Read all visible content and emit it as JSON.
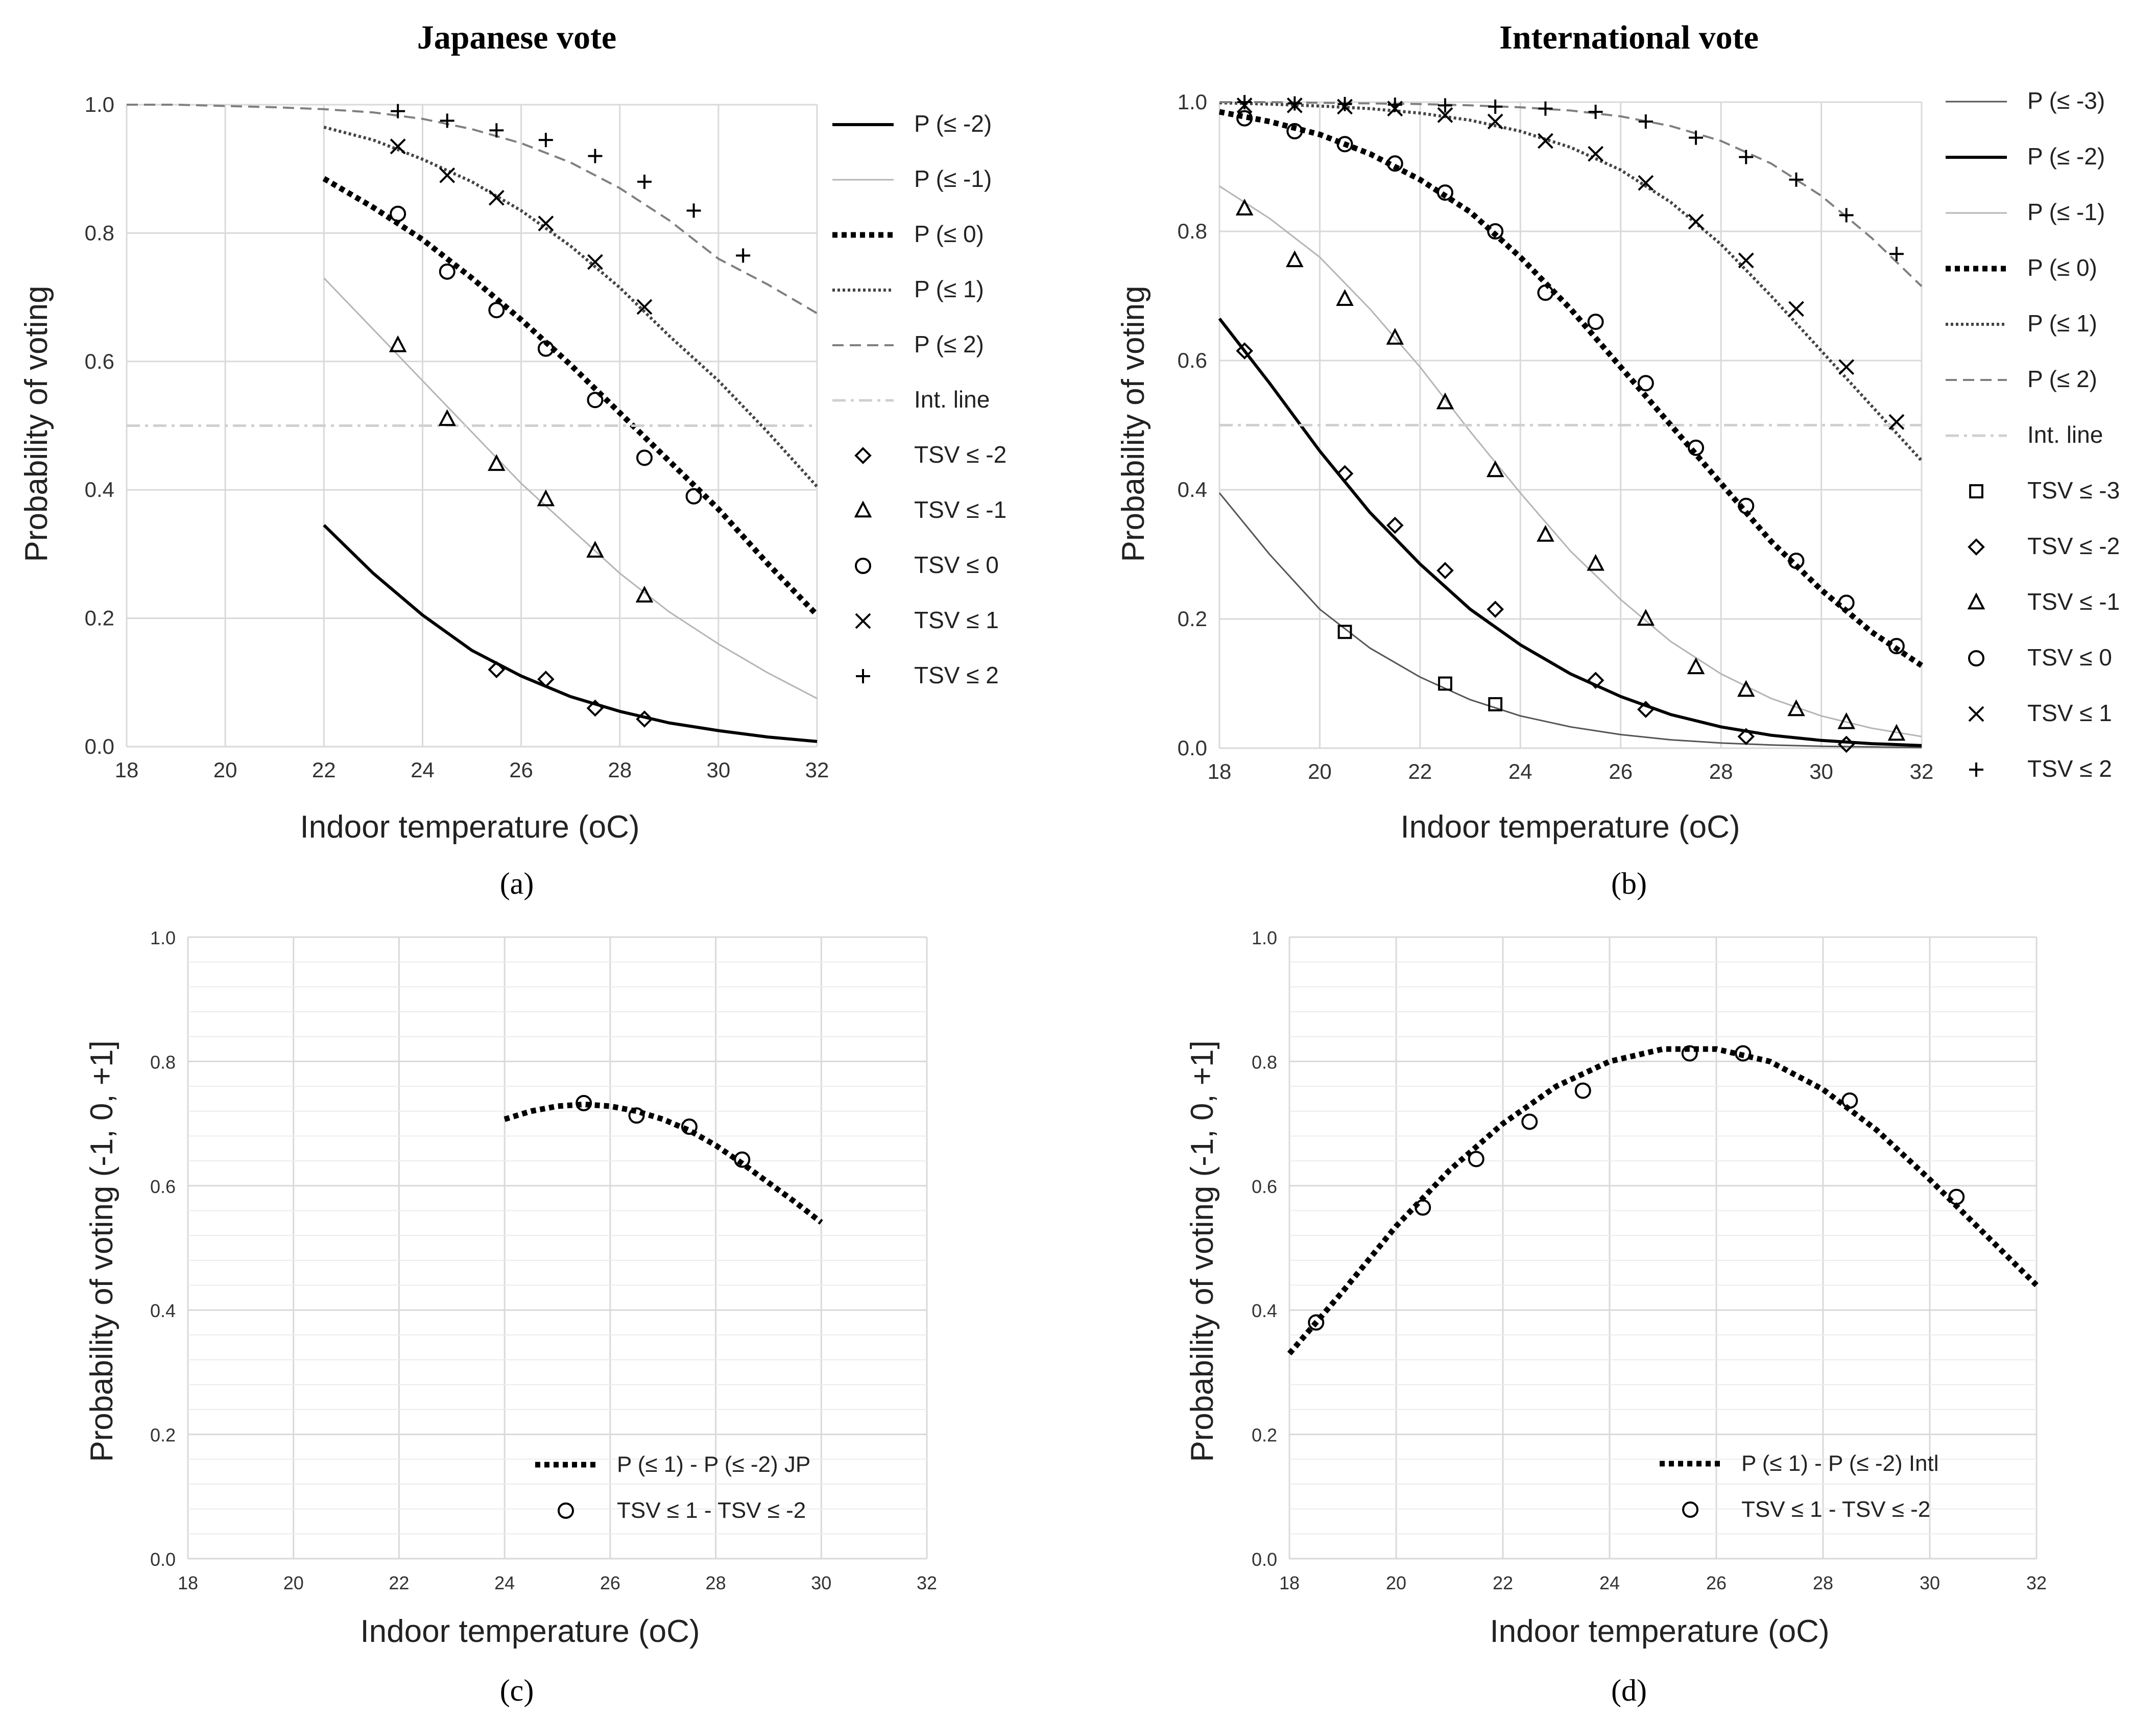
{
  "chart_data": [
    {
      "panel": "(a)",
      "type": "line",
      "title": "Japanese vote",
      "xlabel": "Indoor temperature (oC)",
      "ylabel": "Probability of voting",
      "xlim": [
        18,
        32
      ],
      "ylim": [
        0,
        1
      ],
      "x_ticks": [
        "18",
        "20",
        "22",
        "24",
        "26",
        "28",
        "30",
        "32"
      ],
      "y_ticks": [
        "0.0",
        "0.2",
        "0.4",
        "0.6",
        "0.8",
        "1.0"
      ],
      "grid": true,
      "legend_position": "right",
      "lines": [
        {
          "name": "P (≤ -2)",
          "style": "solid-thick",
          "color": "#000000",
          "x": [
            22,
            23,
            24,
            25,
            26,
            27,
            28,
            29,
            30,
            31,
            32
          ],
          "y": [
            0.345,
            0.27,
            0.205,
            0.15,
            0.11,
            0.078,
            0.055,
            0.037,
            0.025,
            0.015,
            0.008
          ]
        },
        {
          "name": "P (≤ -1)",
          "style": "solid-thin",
          "color": "#b5b5b5",
          "x": [
            22,
            23,
            24,
            25,
            26,
            27,
            28,
            29,
            30,
            31,
            32
          ],
          "y": [
            0.73,
            0.65,
            0.57,
            0.49,
            0.41,
            0.34,
            0.27,
            0.21,
            0.16,
            0.115,
            0.075
          ]
        },
        {
          "name": "P (≤ 0)",
          "style": "dotted-thick",
          "color": "#000000",
          "x": [
            22,
            23,
            24,
            25,
            26,
            27,
            28,
            29,
            30,
            31,
            32
          ],
          "y": [
            0.885,
            0.84,
            0.79,
            0.73,
            0.665,
            0.595,
            0.52,
            0.445,
            0.37,
            0.285,
            0.205
          ]
        },
        {
          "name": "P (≤ 1)",
          "style": "dotted-thin",
          "color": "#444444",
          "x": [
            22,
            23,
            24,
            25,
            26,
            27,
            28,
            29,
            30,
            31,
            32
          ],
          "y": [
            0.965,
            0.945,
            0.915,
            0.88,
            0.835,
            0.78,
            0.715,
            0.64,
            0.57,
            0.49,
            0.405
          ]
        },
        {
          "name": "P (≤ 2)",
          "style": "dashed",
          "color": "#7f7f7f",
          "x": [
            18,
            19,
            20,
            21,
            22,
            23,
            24,
            25,
            26,
            27,
            28,
            29,
            30,
            31,
            32
          ],
          "y": [
            1.0,
            1.0,
            0.998,
            0.996,
            0.993,
            0.988,
            0.978,
            0.962,
            0.94,
            0.91,
            0.87,
            0.82,
            0.76,
            0.72,
            0.675
          ]
        },
        {
          "name": "Int. line",
          "style": "dashdot",
          "color": "#d0d0d0",
          "x": [
            18,
            32
          ],
          "y": [
            0.5,
            0.5
          ]
        }
      ],
      "markers": [
        {
          "name": "TSV ≤ -2",
          "marker": "diamond",
          "x": [
            25.5,
            26.5,
            27.5,
            28.5
          ],
          "y": [
            0.12,
            0.105,
            0.06,
            0.043
          ]
        },
        {
          "name": "TSV ≤ -1",
          "marker": "triangle",
          "x": [
            23.5,
            24.5,
            25.5,
            26.5,
            27.5,
            28.5
          ],
          "y": [
            0.625,
            0.51,
            0.44,
            0.385,
            0.305,
            0.235
          ]
        },
        {
          "name": "TSV ≤ 0",
          "marker": "circle",
          "x": [
            23.5,
            24.5,
            25.5,
            26.5,
            27.5,
            28.5,
            29.5
          ],
          "y": [
            0.83,
            0.74,
            0.68,
            0.62,
            0.54,
            0.45,
            0.39
          ]
        },
        {
          "name": "TSV ≤ 1",
          "marker": "x",
          "x": [
            23.5,
            24.5,
            25.5,
            26.5,
            27.5,
            28.5
          ],
          "y": [
            0.935,
            0.89,
            0.855,
            0.815,
            0.755,
            0.685
          ]
        },
        {
          "name": "TSV ≤ 2",
          "marker": "plus",
          "x": [
            23.5,
            24.5,
            25.5,
            26.5,
            27.5,
            28.5,
            29.5,
            30.5
          ],
          "y": [
            0.99,
            0.975,
            0.96,
            0.945,
            0.92,
            0.88,
            0.835,
            0.765
          ]
        }
      ]
    },
    {
      "panel": "(b)",
      "type": "line",
      "title": "International vote",
      "xlabel": "Indoor temperature (oC)",
      "ylabel": "Probability of voting",
      "xlim": [
        18,
        32
      ],
      "ylim": [
        0,
        1
      ],
      "x_ticks": [
        "18",
        "20",
        "22",
        "24",
        "26",
        "28",
        "30",
        "32"
      ],
      "y_ticks": [
        "0.0",
        "0.2",
        "0.4",
        "0.6",
        "0.8",
        "1.0"
      ],
      "grid": true,
      "legend_position": "right",
      "lines": [
        {
          "name": "P (≤ -3)",
          "style": "solid-thin",
          "color": "#555555",
          "x": [
            18,
            19,
            20,
            21,
            22,
            23,
            24,
            25,
            26,
            27,
            28,
            29,
            30,
            31,
            32
          ],
          "y": [
            0.395,
            0.3,
            0.215,
            0.155,
            0.11,
            0.075,
            0.05,
            0.033,
            0.021,
            0.013,
            0.008,
            0.005,
            0.003,
            0.002,
            0.001
          ]
        },
        {
          "name": "P (≤ -2)",
          "style": "solid-thick",
          "color": "#000000",
          "x": [
            18,
            19,
            20,
            21,
            22,
            23,
            24,
            25,
            26,
            27,
            28,
            29,
            30,
            31,
            32
          ],
          "y": [
            0.665,
            0.565,
            0.46,
            0.365,
            0.285,
            0.215,
            0.16,
            0.115,
            0.08,
            0.052,
            0.033,
            0.02,
            0.012,
            0.007,
            0.004
          ]
        },
        {
          "name": "P (≤ -1)",
          "style": "solid-thin",
          "color": "#b5b5b5",
          "x": [
            18,
            19,
            20,
            21,
            22,
            23,
            24,
            25,
            26,
            27,
            28,
            29,
            30,
            31,
            32
          ],
          "y": [
            0.87,
            0.82,
            0.76,
            0.68,
            0.59,
            0.49,
            0.395,
            0.305,
            0.23,
            0.165,
            0.115,
            0.077,
            0.05,
            0.031,
            0.018
          ]
        },
        {
          "name": "P (≤ 0)",
          "style": "dotted-thick",
          "color": "#000000",
          "x": [
            18,
            19,
            20,
            21,
            22,
            23,
            24,
            25,
            26,
            27,
            28,
            29,
            30,
            31,
            32
          ],
          "y": [
            0.985,
            0.97,
            0.95,
            0.92,
            0.88,
            0.83,
            0.76,
            0.68,
            0.59,
            0.5,
            0.41,
            0.32,
            0.245,
            0.18,
            0.128
          ]
        },
        {
          "name": "P (≤ 1)",
          "style": "dotted-thin",
          "color": "#444444",
          "x": [
            18,
            19,
            20,
            21,
            22,
            23,
            24,
            25,
            26,
            27,
            28,
            29,
            30,
            31,
            32
          ],
          "y": [
            0.999,
            0.997,
            0.994,
            0.99,
            0.983,
            0.972,
            0.955,
            0.93,
            0.895,
            0.845,
            0.78,
            0.7,
            0.615,
            0.53,
            0.445
          ]
        },
        {
          "name": "P (≤ 2)",
          "style": "dashed",
          "color": "#7f7f7f",
          "x": [
            18,
            19,
            20,
            21,
            22,
            23,
            24,
            25,
            26,
            27,
            28,
            29,
            30,
            31,
            32
          ],
          "y": [
            1.0,
            1.0,
            0.999,
            0.998,
            0.997,
            0.995,
            0.992,
            0.987,
            0.978,
            0.963,
            0.94,
            0.905,
            0.855,
            0.79,
            0.715
          ]
        },
        {
          "name": "Int. line",
          "style": "dashdot",
          "color": "#d0d0d0",
          "x": [
            18,
            32
          ],
          "y": [
            0.5,
            0.5
          ]
        }
      ],
      "markers": [
        {
          "name": "TSV ≤ -3",
          "marker": "square",
          "x": [
            20.5,
            22.5,
            23.5
          ],
          "y": [
            0.18,
            0.1,
            0.068
          ]
        },
        {
          "name": "TSV ≤ -2",
          "marker": "diamond",
          "x": [
            18.5,
            20.5,
            21.5,
            22.5,
            23.5,
            25.5,
            26.5,
            28.5,
            30.5
          ],
          "y": [
            0.615,
            0.425,
            0.345,
            0.275,
            0.215,
            0.105,
            0.06,
            0.018,
            0.006
          ]
        },
        {
          "name": "TSV ≤ -1",
          "marker": "triangle",
          "x": [
            18.5,
            19.5,
            20.5,
            21.5,
            22.5,
            23.5,
            24.5,
            25.5,
            26.5,
            27.5,
            28.5,
            29.5,
            30.5,
            31.5
          ],
          "y": [
            0.835,
            0.755,
            0.695,
            0.635,
            0.535,
            0.43,
            0.33,
            0.285,
            0.2,
            0.125,
            0.09,
            0.06,
            0.04,
            0.022
          ]
        },
        {
          "name": "TSV ≤ 0",
          "marker": "circle",
          "x": [
            18.5,
            19.5,
            20.5,
            21.5,
            22.5,
            23.5,
            24.5,
            25.5,
            26.5,
            27.5,
            28.5,
            29.5,
            30.5,
            31.5
          ],
          "y": [
            0.975,
            0.955,
            0.935,
            0.905,
            0.86,
            0.8,
            0.705,
            0.66,
            0.565,
            0.465,
            0.375,
            0.29,
            0.225,
            0.158
          ]
        },
        {
          "name": "TSV ≤ 1",
          "marker": "x",
          "x": [
            18.5,
            19.5,
            20.5,
            21.5,
            22.5,
            23.5,
            24.5,
            25.5,
            26.5,
            27.5,
            28.5,
            29.5,
            30.5,
            31.5
          ],
          "y": [
            0.995,
            0.995,
            0.993,
            0.99,
            0.98,
            0.97,
            0.94,
            0.92,
            0.875,
            0.815,
            0.755,
            0.68,
            0.59,
            0.505
          ]
        },
        {
          "name": "TSV ≤ 2",
          "marker": "plus",
          "x": [
            18.5,
            19.5,
            20.5,
            21.5,
            22.5,
            23.5,
            24.5,
            25.5,
            26.5,
            27.5,
            28.5,
            29.5,
            30.5,
            31.5
          ],
          "y": [
            1.0,
            0.998,
            0.997,
            0.996,
            0.995,
            0.993,
            0.99,
            0.985,
            0.97,
            0.945,
            0.915,
            0.88,
            0.825,
            0.765
          ]
        }
      ]
    },
    {
      "panel": "(c)",
      "type": "line",
      "title": "",
      "xlabel": "Indoor temperature (oC)",
      "ylabel": "Probability of voting  (-1, 0, +1]",
      "xlim": [
        18,
        32
      ],
      "ylim": [
        0,
        1
      ],
      "x_ticks": [
        "18",
        "20",
        "22",
        "24",
        "26",
        "28",
        "30",
        "32"
      ],
      "y_ticks": [
        "0.0",
        "0.2",
        "0.4",
        "0.6",
        "0.8",
        "1.0"
      ],
      "grid": true,
      "legend_position": "bottom-right",
      "lines": [
        {
          "name": "P (≤ 1) - P (≤ -2) JP",
          "style": "dotted-thick",
          "color": "#000000",
          "x": [
            24,
            24.5,
            25,
            25.5,
            26,
            26.5,
            27,
            27.5,
            28,
            28.5,
            29,
            29.5,
            30
          ],
          "y": [
            0.707,
            0.72,
            0.728,
            0.731,
            0.728,
            0.72,
            0.707,
            0.689,
            0.665,
            0.636,
            0.605,
            0.574,
            0.541
          ]
        }
      ],
      "markers": [
        {
          "name": "TSV ≤ 1 - TSV ≤ -2",
          "marker": "circle",
          "x": [
            25.5,
            26.5,
            27.5,
            28.5
          ],
          "y": [
            0.733,
            0.713,
            0.695,
            0.642
          ]
        }
      ]
    },
    {
      "panel": "(d)",
      "type": "line",
      "title": "",
      "xlabel": "Indoor temperature (oC)",
      "ylabel": "Probability of voting  (-1, 0, +1]",
      "xlim": [
        18,
        32
      ],
      "ylim": [
        0,
        1
      ],
      "x_ticks": [
        "18",
        "20",
        "22",
        "24",
        "26",
        "28",
        "30",
        "32"
      ],
      "y_ticks": [
        "0.0",
        "0.2",
        "0.4",
        "0.6",
        "0.8",
        "1.0"
      ],
      "grid": true,
      "legend_position": "bottom-right",
      "lines": [
        {
          "name": "P (≤ 1) - P (≤ -2) Intl",
          "style": "dotted-thick",
          "color": "#000000",
          "x": [
            18,
            19,
            20,
            21,
            22,
            23,
            24,
            25,
            26,
            27,
            28,
            29,
            30,
            31,
            32
          ],
          "y": [
            0.33,
            0.43,
            0.535,
            0.625,
            0.7,
            0.76,
            0.8,
            0.82,
            0.82,
            0.8,
            0.755,
            0.69,
            0.61,
            0.525,
            0.44
          ]
        }
      ],
      "markers": [
        {
          "name": "TSV ≤ 1 - TSV ≤ -2",
          "marker": "circle",
          "x": [
            18.5,
            20.5,
            21.5,
            22.5,
            23.5,
            25.5,
            26.5,
            28.5,
            30.5
          ],
          "y": [
            0.38,
            0.565,
            0.643,
            0.703,
            0.753,
            0.813,
            0.813,
            0.737,
            0.582
          ]
        }
      ]
    }
  ],
  "panel_labels": [
    "(a)",
    "(b)",
    "(c)",
    "(d)"
  ]
}
